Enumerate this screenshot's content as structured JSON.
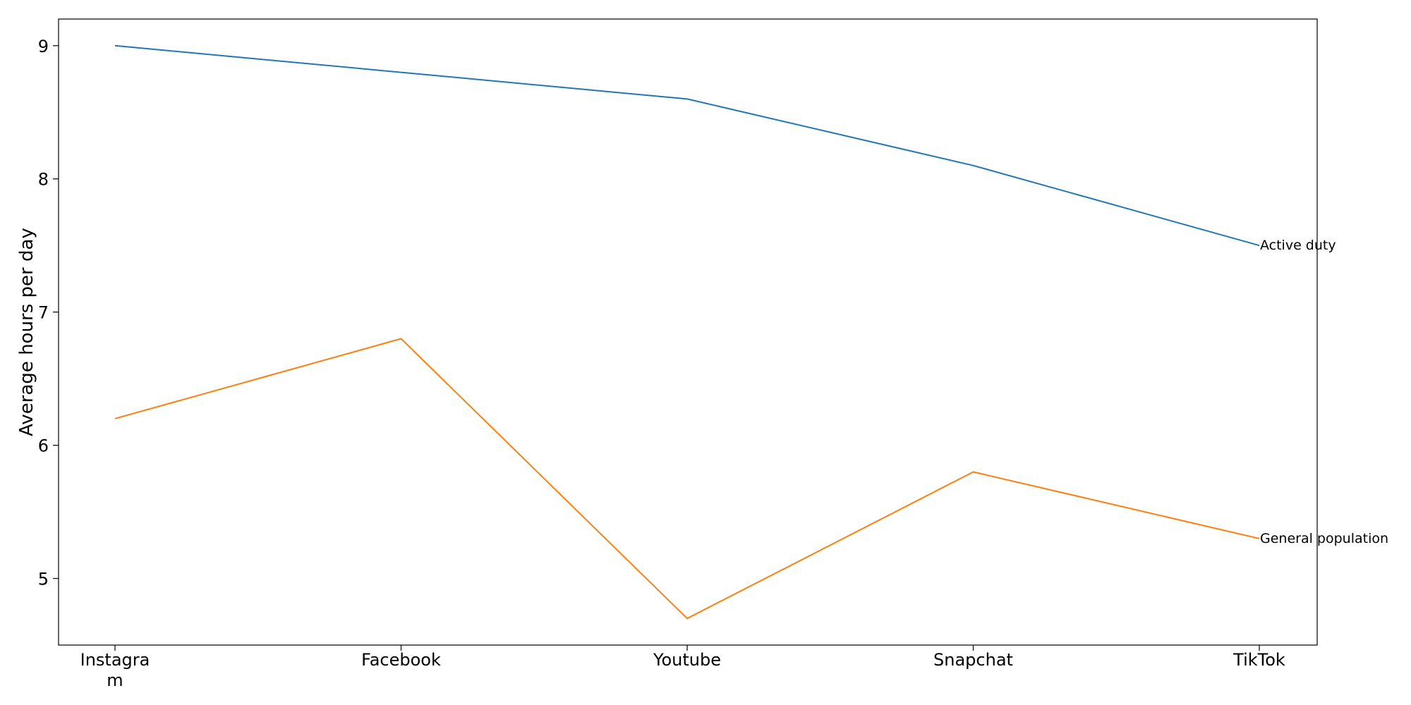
{
  "chart_data": {
    "type": "line",
    "categories": [
      [
        "Instagra",
        "m"
      ],
      [
        "Facebook"
      ],
      [
        "Youtube"
      ],
      [
        "Snapchat"
      ],
      [
        "TikTok"
      ]
    ],
    "ylabel": "Average hours per day",
    "xlabel": "",
    "ylim": [
      4.5,
      9.2
    ],
    "yticks": [
      5,
      6,
      7,
      8,
      9
    ],
    "grid": false,
    "legend": "none",
    "series": [
      {
        "name": "Active duty",
        "color": "#1f77b4",
        "values": [
          9.0,
          8.8,
          8.6,
          8.1,
          7.5
        ]
      },
      {
        "name": "General population",
        "color": "#ff7f0e",
        "values": [
          6.2,
          6.8,
          4.7,
          5.8,
          5.3
        ]
      }
    ]
  }
}
